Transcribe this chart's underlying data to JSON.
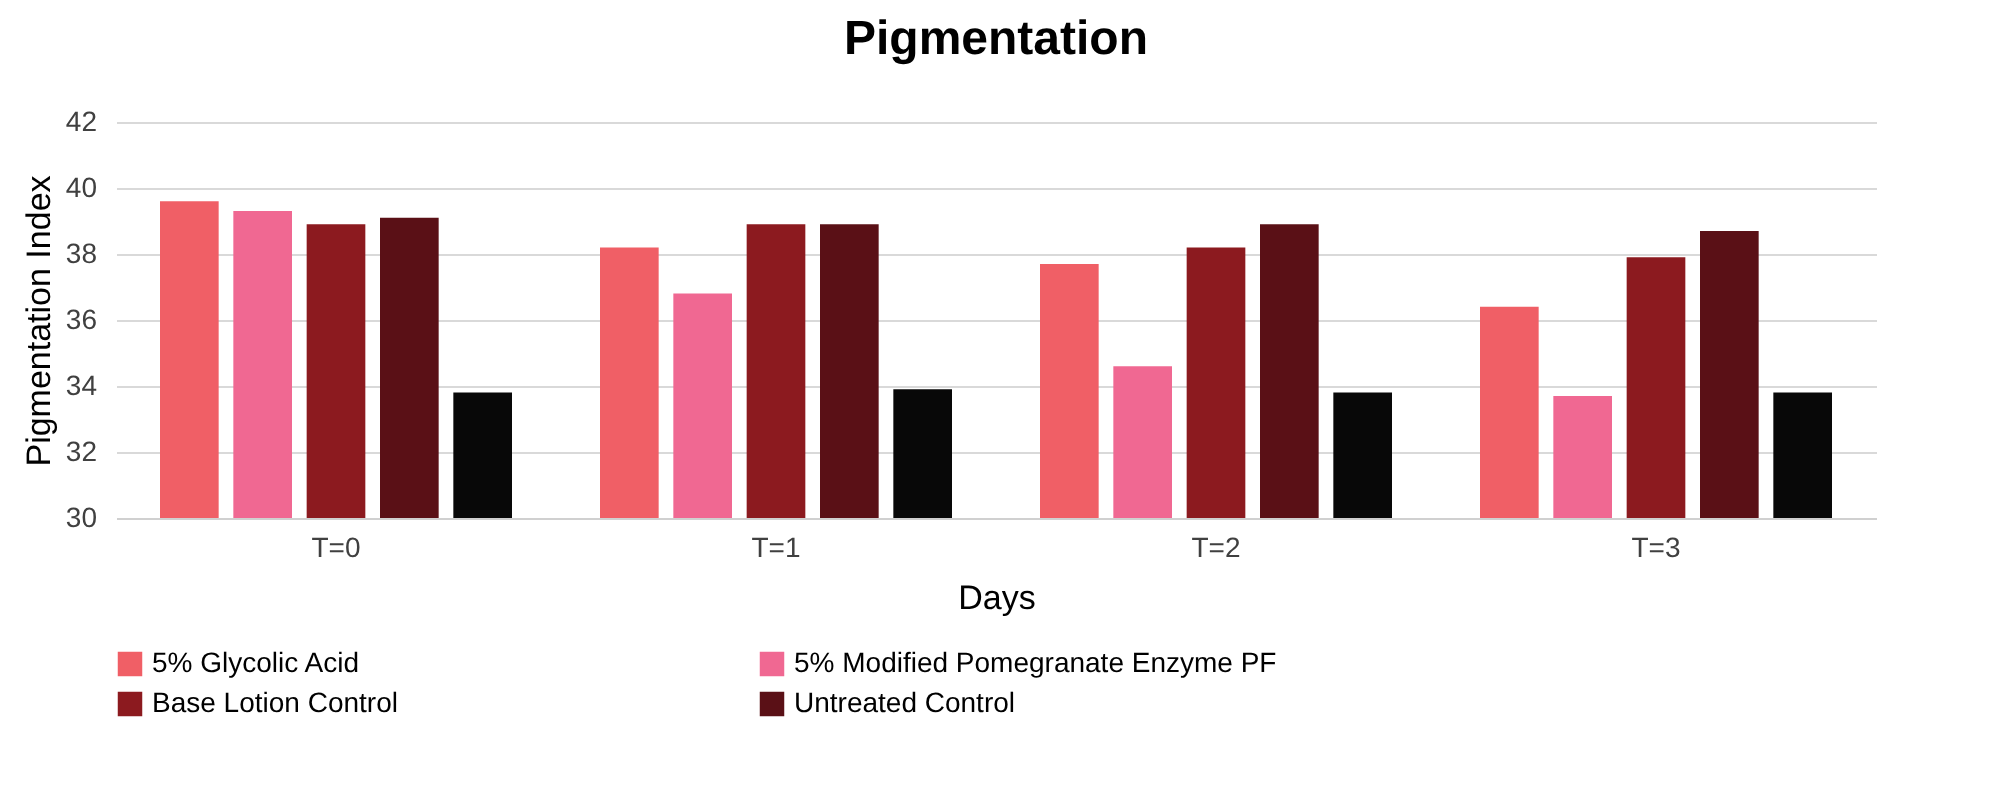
{
  "chart_data": {
    "type": "bar",
    "title": "Pigmentation",
    "xlabel": "Days",
    "ylabel": "Pigmentation Index",
    "categories": [
      "T=0",
      "T=1",
      "T=2",
      "T=3"
    ],
    "series": [
      {
        "name": "5% Glycolic Acid",
        "color": "#f05f66",
        "values": [
          39.6,
          38.2,
          37.7,
          36.4
        ]
      },
      {
        "name": "5% Modified Pomegranate Enzyme PF",
        "color": "#f06892",
        "values": [
          39.3,
          36.8,
          34.6,
          33.7
        ]
      },
      {
        "name": "Base Lotion Control",
        "color": "#8c1a1f",
        "values": [
          38.9,
          38.9,
          38.2,
          37.9
        ]
      },
      {
        "name": "Untreated Control",
        "color": "#5a1016",
        "values": [
          39.1,
          38.9,
          38.9,
          38.7
        ]
      },
      {
        "color": "#080808",
        "values": [
          33.8,
          33.9,
          33.8,
          33.8
        ]
      }
    ],
    "ylim": [
      30,
      42
    ],
    "yticks": [
      30,
      32,
      34,
      36,
      38,
      40,
      42
    ],
    "grid": "y",
    "legend": "bottom"
  }
}
